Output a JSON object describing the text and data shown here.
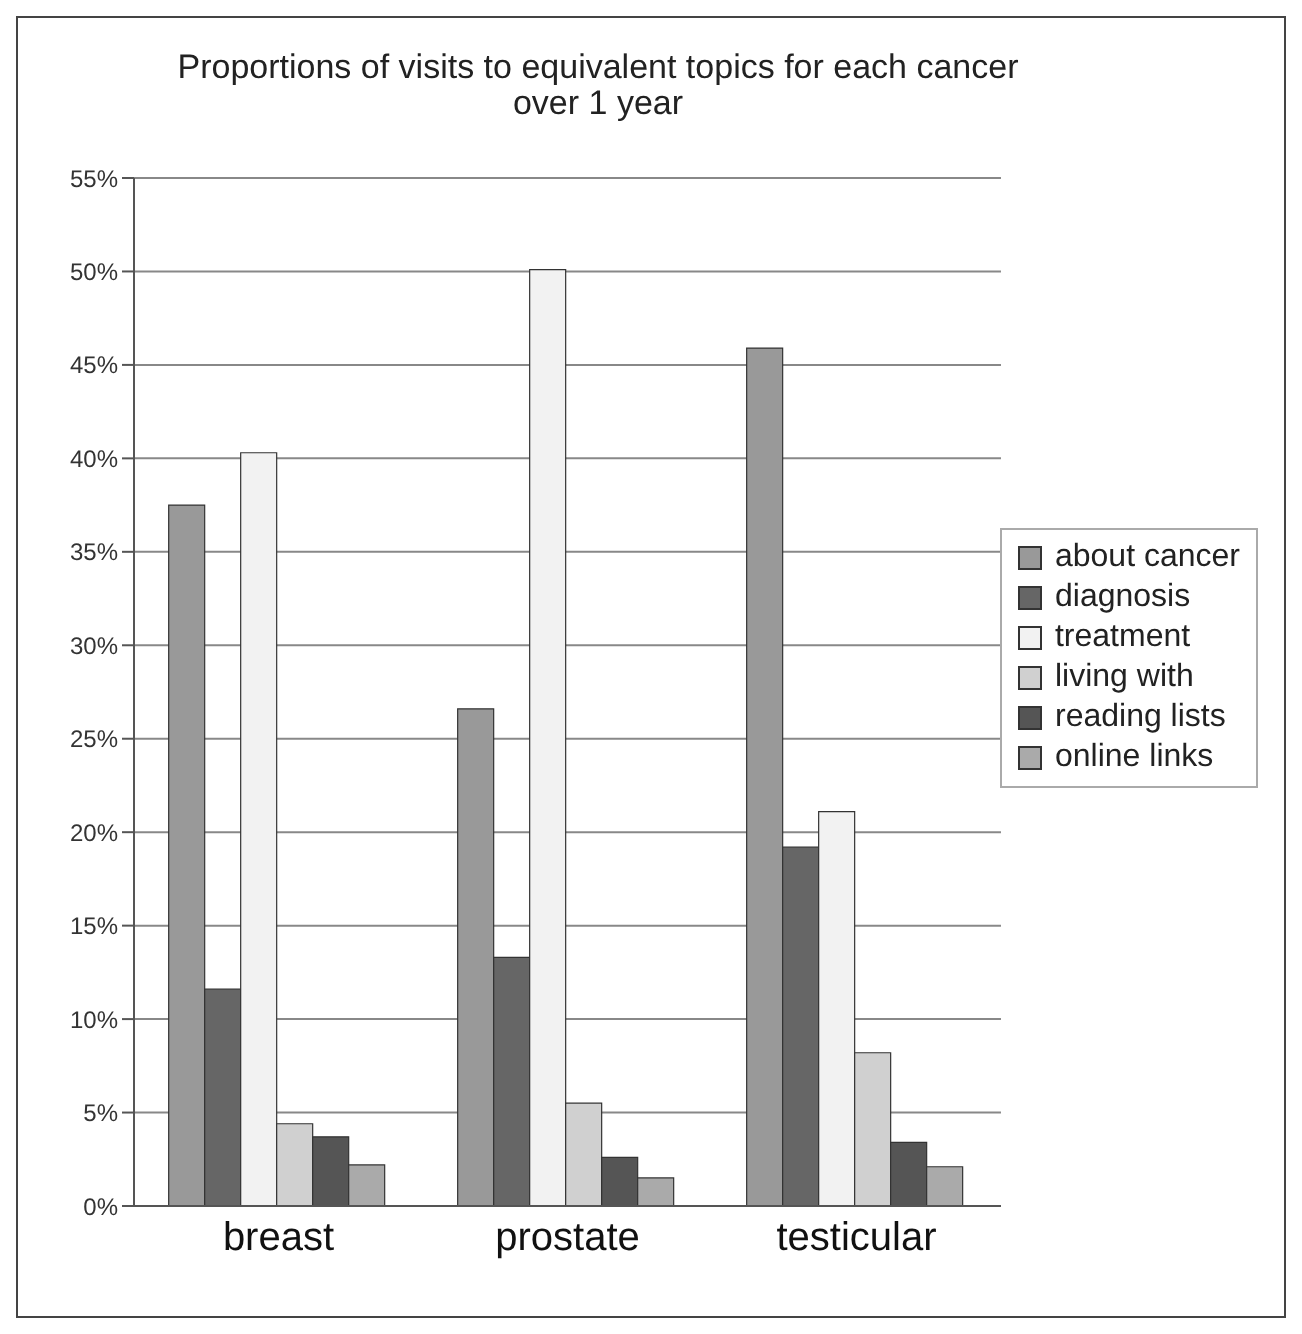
{
  "chart_data": {
    "type": "bar",
    "title": "Proportions of visits to equivalent topics for each cancer over 1 year",
    "categories": [
      "breast",
      "prostate",
      "testicular"
    ],
    "series": [
      {
        "name": "about cancer",
        "color": "#999999",
        "values": [
          37.5,
          26.6,
          45.9
        ]
      },
      {
        "name": "diagnosis",
        "color": "#666666",
        "values": [
          11.6,
          13.3,
          19.2
        ]
      },
      {
        "name": "treatment",
        "color": "#f2f2f2",
        "values": [
          40.3,
          50.1,
          21.1
        ]
      },
      {
        "name": "living with",
        "color": "#d0d0d0",
        "values": [
          4.4,
          5.5,
          8.2
        ]
      },
      {
        "name": "reading lists",
        "color": "#555555",
        "values": [
          3.7,
          2.6,
          3.4
        ]
      },
      {
        "name": "online links",
        "color": "#aaaaaa",
        "values": [
          2.2,
          1.5,
          2.1
        ]
      }
    ],
    "ylim": [
      0,
      55
    ],
    "yticks": [
      {
        "value": 0,
        "label": "0%"
      },
      {
        "value": 5,
        "label": "5%"
      },
      {
        "value": 10,
        "label": "10%"
      },
      {
        "value": 15,
        "label": "15%"
      },
      {
        "value": 20,
        "label": "20%"
      },
      {
        "value": 25,
        "label": "25%"
      },
      {
        "value": 30,
        "label": "30%"
      },
      {
        "value": 35,
        "label": "35%"
      },
      {
        "value": 40,
        "label": "40%"
      },
      {
        "value": 45,
        "label": "45%"
      },
      {
        "value": 50,
        "label": "50%"
      },
      {
        "value": 55,
        "label": "55%"
      }
    ],
    "grid": "y",
    "legend": "right"
  }
}
